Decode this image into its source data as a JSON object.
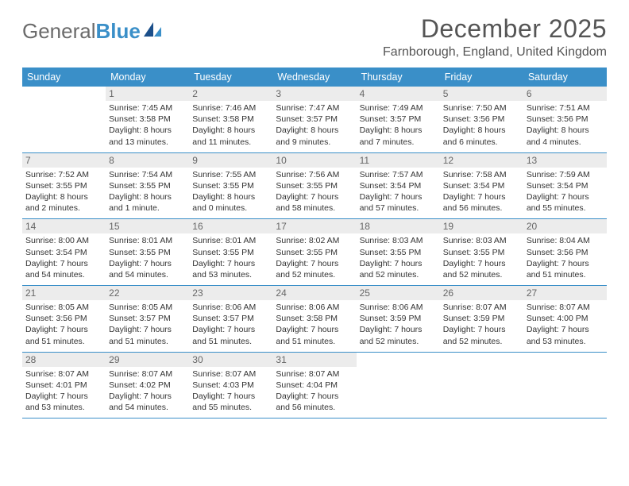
{
  "logo": {
    "general": "General",
    "blue": "Blue"
  },
  "title": "December 2025",
  "location": "Farnborough, England, United Kingdom",
  "day_headers": [
    "Sunday",
    "Monday",
    "Tuesday",
    "Wednesday",
    "Thursday",
    "Friday",
    "Saturday"
  ],
  "colors": {
    "header_bg": "#3a8fc8",
    "header_text": "#ffffff",
    "daynum_bg": "#ececec",
    "daynum_text": "#666666",
    "rule": "#3a8fc8",
    "body_text": "#333333",
    "logo_gray": "#6b6b6b",
    "logo_blue": "#3a8fc8"
  },
  "weeks": [
    [
      {
        "n": "",
        "sunrise": "",
        "sunset": "",
        "day1": "",
        "day2": ""
      },
      {
        "n": "1",
        "sunrise": "Sunrise: 7:45 AM",
        "sunset": "Sunset: 3:58 PM",
        "day1": "Daylight: 8 hours",
        "day2": "and 13 minutes."
      },
      {
        "n": "2",
        "sunrise": "Sunrise: 7:46 AM",
        "sunset": "Sunset: 3:58 PM",
        "day1": "Daylight: 8 hours",
        "day2": "and 11 minutes."
      },
      {
        "n": "3",
        "sunrise": "Sunrise: 7:47 AM",
        "sunset": "Sunset: 3:57 PM",
        "day1": "Daylight: 8 hours",
        "day2": "and 9 minutes."
      },
      {
        "n": "4",
        "sunrise": "Sunrise: 7:49 AM",
        "sunset": "Sunset: 3:57 PM",
        "day1": "Daylight: 8 hours",
        "day2": "and 7 minutes."
      },
      {
        "n": "5",
        "sunrise": "Sunrise: 7:50 AM",
        "sunset": "Sunset: 3:56 PM",
        "day1": "Daylight: 8 hours",
        "day2": "and 6 minutes."
      },
      {
        "n": "6",
        "sunrise": "Sunrise: 7:51 AM",
        "sunset": "Sunset: 3:56 PM",
        "day1": "Daylight: 8 hours",
        "day2": "and 4 minutes."
      }
    ],
    [
      {
        "n": "7",
        "sunrise": "Sunrise: 7:52 AM",
        "sunset": "Sunset: 3:55 PM",
        "day1": "Daylight: 8 hours",
        "day2": "and 2 minutes."
      },
      {
        "n": "8",
        "sunrise": "Sunrise: 7:54 AM",
        "sunset": "Sunset: 3:55 PM",
        "day1": "Daylight: 8 hours",
        "day2": "and 1 minute."
      },
      {
        "n": "9",
        "sunrise": "Sunrise: 7:55 AM",
        "sunset": "Sunset: 3:55 PM",
        "day1": "Daylight: 8 hours",
        "day2": "and 0 minutes."
      },
      {
        "n": "10",
        "sunrise": "Sunrise: 7:56 AM",
        "sunset": "Sunset: 3:55 PM",
        "day1": "Daylight: 7 hours",
        "day2": "and 58 minutes."
      },
      {
        "n": "11",
        "sunrise": "Sunrise: 7:57 AM",
        "sunset": "Sunset: 3:54 PM",
        "day1": "Daylight: 7 hours",
        "day2": "and 57 minutes."
      },
      {
        "n": "12",
        "sunrise": "Sunrise: 7:58 AM",
        "sunset": "Sunset: 3:54 PM",
        "day1": "Daylight: 7 hours",
        "day2": "and 56 minutes."
      },
      {
        "n": "13",
        "sunrise": "Sunrise: 7:59 AM",
        "sunset": "Sunset: 3:54 PM",
        "day1": "Daylight: 7 hours",
        "day2": "and 55 minutes."
      }
    ],
    [
      {
        "n": "14",
        "sunrise": "Sunrise: 8:00 AM",
        "sunset": "Sunset: 3:54 PM",
        "day1": "Daylight: 7 hours",
        "day2": "and 54 minutes."
      },
      {
        "n": "15",
        "sunrise": "Sunrise: 8:01 AM",
        "sunset": "Sunset: 3:55 PM",
        "day1": "Daylight: 7 hours",
        "day2": "and 54 minutes."
      },
      {
        "n": "16",
        "sunrise": "Sunrise: 8:01 AM",
        "sunset": "Sunset: 3:55 PM",
        "day1": "Daylight: 7 hours",
        "day2": "and 53 minutes."
      },
      {
        "n": "17",
        "sunrise": "Sunrise: 8:02 AM",
        "sunset": "Sunset: 3:55 PM",
        "day1": "Daylight: 7 hours",
        "day2": "and 52 minutes."
      },
      {
        "n": "18",
        "sunrise": "Sunrise: 8:03 AM",
        "sunset": "Sunset: 3:55 PM",
        "day1": "Daylight: 7 hours",
        "day2": "and 52 minutes."
      },
      {
        "n": "19",
        "sunrise": "Sunrise: 8:03 AM",
        "sunset": "Sunset: 3:55 PM",
        "day1": "Daylight: 7 hours",
        "day2": "and 52 minutes."
      },
      {
        "n": "20",
        "sunrise": "Sunrise: 8:04 AM",
        "sunset": "Sunset: 3:56 PM",
        "day1": "Daylight: 7 hours",
        "day2": "and 51 minutes."
      }
    ],
    [
      {
        "n": "21",
        "sunrise": "Sunrise: 8:05 AM",
        "sunset": "Sunset: 3:56 PM",
        "day1": "Daylight: 7 hours",
        "day2": "and 51 minutes."
      },
      {
        "n": "22",
        "sunrise": "Sunrise: 8:05 AM",
        "sunset": "Sunset: 3:57 PM",
        "day1": "Daylight: 7 hours",
        "day2": "and 51 minutes."
      },
      {
        "n": "23",
        "sunrise": "Sunrise: 8:06 AM",
        "sunset": "Sunset: 3:57 PM",
        "day1": "Daylight: 7 hours",
        "day2": "and 51 minutes."
      },
      {
        "n": "24",
        "sunrise": "Sunrise: 8:06 AM",
        "sunset": "Sunset: 3:58 PM",
        "day1": "Daylight: 7 hours",
        "day2": "and 51 minutes."
      },
      {
        "n": "25",
        "sunrise": "Sunrise: 8:06 AM",
        "sunset": "Sunset: 3:59 PM",
        "day1": "Daylight: 7 hours",
        "day2": "and 52 minutes."
      },
      {
        "n": "26",
        "sunrise": "Sunrise: 8:07 AM",
        "sunset": "Sunset: 3:59 PM",
        "day1": "Daylight: 7 hours",
        "day2": "and 52 minutes."
      },
      {
        "n": "27",
        "sunrise": "Sunrise: 8:07 AM",
        "sunset": "Sunset: 4:00 PM",
        "day1": "Daylight: 7 hours",
        "day2": "and 53 minutes."
      }
    ],
    [
      {
        "n": "28",
        "sunrise": "Sunrise: 8:07 AM",
        "sunset": "Sunset: 4:01 PM",
        "day1": "Daylight: 7 hours",
        "day2": "and 53 minutes."
      },
      {
        "n": "29",
        "sunrise": "Sunrise: 8:07 AM",
        "sunset": "Sunset: 4:02 PM",
        "day1": "Daylight: 7 hours",
        "day2": "and 54 minutes."
      },
      {
        "n": "30",
        "sunrise": "Sunrise: 8:07 AM",
        "sunset": "Sunset: 4:03 PM",
        "day1": "Daylight: 7 hours",
        "day2": "and 55 minutes."
      },
      {
        "n": "31",
        "sunrise": "Sunrise: 8:07 AM",
        "sunset": "Sunset: 4:04 PM",
        "day1": "Daylight: 7 hours",
        "day2": "and 56 minutes."
      },
      {
        "n": "",
        "sunrise": "",
        "sunset": "",
        "day1": "",
        "day2": ""
      },
      {
        "n": "",
        "sunrise": "",
        "sunset": "",
        "day1": "",
        "day2": ""
      },
      {
        "n": "",
        "sunrise": "",
        "sunset": "",
        "day1": "",
        "day2": ""
      }
    ]
  ]
}
